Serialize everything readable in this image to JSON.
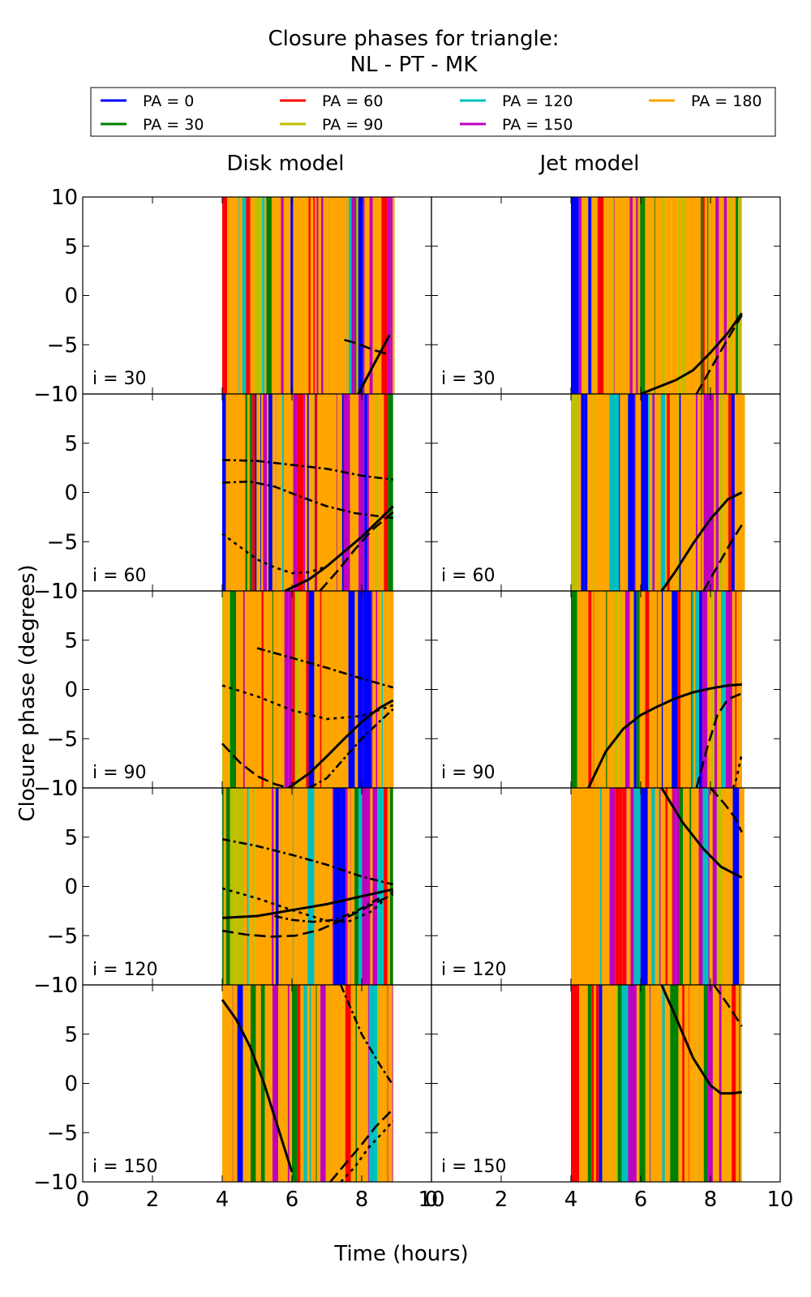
{
  "title_line1": "Closure phases for triangle:",
  "title_line2": "NL - PT - MK",
  "legend": [
    {
      "label": "PA = 0",
      "color": "#0000ff"
    },
    {
      "label": "PA = 60",
      "color": "#ff0000"
    },
    {
      "label": "PA = 120",
      "color": "#00bfbf"
    },
    {
      "label": "PA = 180",
      "color": "#ffa500"
    },
    {
      "label": "PA = 30",
      "color": "#008000"
    },
    {
      "label": "PA = 90",
      "color": "#bfbf00"
    },
    {
      "label": "PA = 150",
      "color": "#bf00bf"
    }
  ],
  "column_titles": [
    "Disk model",
    "Jet model"
  ],
  "xlabel": "Time (hours)",
  "ylabel": "Closure phase (degrees)",
  "chart_data": {
    "type": "line",
    "xlim": [
      0,
      10
    ],
    "ylim": [
      -10,
      10
    ],
    "xticks": [
      0,
      2,
      4,
      6,
      8,
      10
    ],
    "yticks": [
      10,
      5,
      0,
      -5,
      -10
    ],
    "xtick_labels": [
      "0",
      "2",
      "4",
      "6",
      "8",
      "10"
    ],
    "ytick_labels": [
      "10",
      "5",
      "0",
      "−5",
      "−10"
    ],
    "time_range": [
      4.0,
      8.9
    ],
    "rows": [
      "i = 30",
      "i = 60",
      "i = 90",
      "i = 120",
      "i = 150"
    ],
    "panels": [
      {
        "col": 0,
        "row": 0,
        "series": [
          {
            "x": [
              7.9,
              8.2,
              8.5,
              8.8
            ],
            "y": [
              -10,
              -8,
              -6,
              -4
            ]
          },
          {
            "x": [
              7.5,
              7.8,
              8.1,
              8.4,
              8.8
            ],
            "y": [
              -4.5,
              -4.8,
              -5.2,
              -5.6,
              -6
            ]
          }
        ]
      },
      {
        "col": 1,
        "row": 0,
        "series": [
          {
            "x": [
              6.0,
              6.5,
              7.0,
              7.5,
              8.0,
              8.5,
              8.9
            ],
            "y": [
              -10,
              -9.3,
              -8.6,
              -7.6,
              -5.8,
              -3.8,
              -1.8
            ]
          },
          {
            "x": [
              7.6,
              8.0,
              8.4,
              8.9
            ],
            "y": [
              -10,
              -7.5,
              -5,
              -2
            ]
          }
        ]
      },
      {
        "col": 0,
        "row": 1,
        "series": [
          {
            "x": [
              5.8,
              6.5,
              7.0,
              7.5,
              8.0,
              8.5,
              8.9
            ],
            "y": [
              -10,
              -8.8,
              -7.5,
              -6.0,
              -4.5,
              -2.8,
              -1.4
            ]
          },
          {
            "x": [
              6.8,
              7.3,
              7.8,
              8.3,
              8.9
            ],
            "y": [
              -10,
              -8,
              -5.8,
              -3.8,
              -2
            ]
          },
          {
            "x": [
              4.0,
              4.5,
              5.0,
              5.5,
              6.0,
              6.5,
              7.0
            ],
            "y": [
              -4.2,
              -5.5,
              -6.8,
              -7.6,
              -8.2,
              -8.1,
              -7.5
            ]
          },
          {
            "x": [
              4.0,
              4.8,
              5.5,
              6.3,
              7.0,
              7.8,
              8.9
            ],
            "y": [
              1,
              1.1,
              0.6,
              -0.5,
              -1.4,
              -2.1,
              -2.6
            ]
          },
          {
            "x": [
              4.0,
              5.0,
              6.0,
              7.0,
              8.0,
              8.9
            ],
            "y": [
              3.3,
              3.2,
              2.8,
              2.4,
              1.7,
              1.3
            ]
          }
        ]
      },
      {
        "col": 1,
        "row": 1,
        "series": [
          {
            "x": [
              6.6,
              7.0,
              7.5,
              8.0,
              8.5,
              8.9
            ],
            "y": [
              -10,
              -8,
              -5.2,
              -2.7,
              -0.7,
              0
            ]
          },
          {
            "x": [
              7.8,
              8.2,
              8.6,
              8.9
            ],
            "y": [
              -10,
              -7.5,
              -5,
              -3.3
            ]
          }
        ]
      },
      {
        "col": 0,
        "row": 2,
        "series": [
          {
            "x": [
              5.9,
              6.5,
              7.0,
              7.5,
              8.0,
              8.5,
              8.9
            ],
            "y": [
              -10,
              -8.5,
              -6.8,
              -5.0,
              -3.3,
              -1.9,
              -1.1
            ]
          },
          {
            "x": [
              4.0,
              4.5,
              5.0,
              5.5,
              5.9
            ],
            "y": [
              -5.5,
              -7.4,
              -8.8,
              -9.6,
              -10
            ]
          },
          {
            "x": [
              4.0,
              5.0,
              6.0,
              7.0,
              8.0,
              8.9
            ],
            "y": [
              0.4,
              -0.7,
              -2.1,
              -3.0,
              -2.7,
              -1.6
            ]
          },
          {
            "x": [
              6.5,
              7.0,
              7.5,
              8.0,
              8.5,
              8.9
            ],
            "y": [
              -10,
              -9,
              -7,
              -5,
              -3.3,
              -2
            ]
          },
          {
            "x": [
              5.0,
              6.0,
              7.0,
              8.0,
              8.9
            ],
            "y": [
              4.2,
              3.2,
              2.2,
              1.1,
              0.2
            ]
          }
        ]
      },
      {
        "col": 1,
        "row": 2,
        "series": [
          {
            "x": [
              4.5,
              5.0,
              5.5,
              6.0,
              6.5,
              7.0,
              7.5,
              8.0,
              8.5,
              8.9
            ],
            "y": [
              -10,
              -6.3,
              -4.0,
              -2.6,
              -1.7,
              -0.9,
              -0.3,
              0.1,
              0.4,
              0.5
            ]
          },
          {
            "x": [
              7.6,
              7.9,
              8.2,
              8.5,
              8.9
            ],
            "y": [
              -10,
              -6,
              -2.6,
              -1.0,
              -0.4
            ]
          },
          {
            "x": [
              8.65,
              8.75,
              8.9
            ],
            "y": [
              -10,
              -9,
              -6.5
            ]
          }
        ]
      },
      {
        "col": 0,
        "row": 3,
        "series": [
          {
            "x": [
              4.0,
              5.0,
              6.0,
              7.0,
              8.0,
              8.9
            ],
            "y": [
              -3.2,
              -3.0,
              -2.4,
              -1.8,
              -1.0,
              -0.3
            ]
          },
          {
            "x": [
              4.0,
              4.7,
              5.4,
              6.1,
              6.8,
              7.5,
              8.2,
              8.9
            ],
            "y": [
              -4.5,
              -4.9,
              -5.1,
              -5.0,
              -4.4,
              -3.3,
              -2.0,
              -0.8
            ]
          },
          {
            "x": [
              4.0,
              5.0,
              6.0,
              7.0,
              7.6,
              8.3,
              8.9
            ],
            "y": [
              -0.2,
              -1.2,
              -2.4,
              -3.5,
              -3.6,
              -2.5,
              -0.5
            ]
          },
          {
            "x": [
              4.0,
              5.0,
              6.0,
              7.0,
              8.0,
              8.9
            ],
            "y": [
              4.8,
              4.1,
              3.2,
              2.2,
              1.0,
              0.2
            ]
          },
          {
            "x": [
              5.5,
              6.0,
              6.6,
              7.2,
              7.8,
              8.5
            ],
            "y": [
              -3.0,
              -3.4,
              -3.6,
              -3.4,
              -2.6,
              -1.2
            ]
          }
        ]
      },
      {
        "col": 1,
        "row": 3,
        "series": [
          {
            "x": [
              6.6,
              7.2,
              7.8,
              8.3,
              8.9
            ],
            "y": [
              10,
              6.5,
              3.8,
              2.0,
              0.9
            ]
          },
          {
            "x": [
              8.0,
              8.4,
              8.7,
              8.9
            ],
            "y": [
              10,
              8.4,
              7.0,
              5.5
            ]
          }
        ]
      },
      {
        "col": 0,
        "row": 4,
        "series": [
          {
            "x": [
              4.0,
              4.4,
              4.8,
              5.2,
              5.6,
              6.0
            ],
            "y": [
              8.5,
              6.5,
              3.7,
              0,
              -4.5,
              -9.0
            ]
          },
          {
            "x": [
              7.1,
              7.5,
              8.0,
              8.4,
              8.9
            ],
            "y": [
              -10,
              -8.3,
              -6.2,
              -4.4,
              -2.6
            ]
          },
          {
            "x": [
              7.4,
              7.8,
              8.2,
              8.6,
              8.9
            ],
            "y": [
              -10,
              -8.5,
              -6.5,
              -5.0,
              -3.8
            ]
          },
          {
            "x": [
              7.4,
              8.0,
              8.5,
              8.9
            ],
            "y": [
              10,
              5.0,
              2.0,
              -0.2
            ]
          }
        ]
      },
      {
        "col": 1,
        "row": 4,
        "series": [
          {
            "x": [
              6.6,
              7.0,
              7.5,
              8.0,
              8.3,
              8.6,
              8.9
            ],
            "y": [
              10,
              6.8,
              2.6,
              -0.2,
              -1.0,
              -1.0,
              -0.9
            ]
          },
          {
            "x": [
              8.1,
              8.5,
              8.9
            ],
            "y": [
              10,
              8.0,
              5.8
            ]
          }
        ]
      }
    ]
  }
}
